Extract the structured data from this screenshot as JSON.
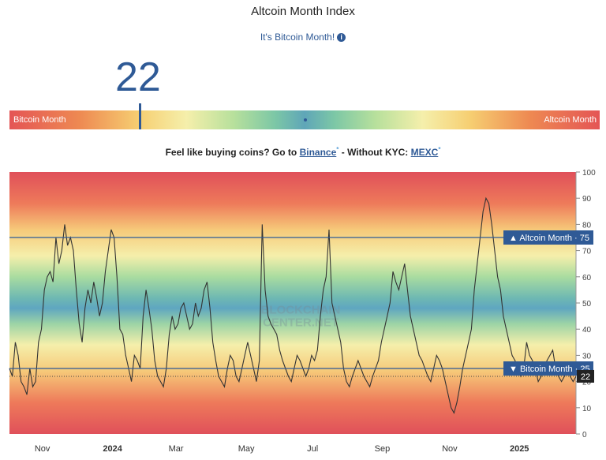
{
  "page": {
    "title": "Altcoin Month Index",
    "subtitle": "It's Bitcoin Month!",
    "index_value": "22",
    "scale_left_label": "Bitcoin Month",
    "scale_right_label": "Altcoin Month",
    "promo": {
      "prefix": "Feel like buying coins? Go to",
      "link1": "Binance",
      "sup": "*",
      "middle": "- Without KYC:",
      "link2": "MEXC"
    }
  },
  "colors": {
    "accent": "#2f5a96",
    "red": "#e45555",
    "yellow": "#f5efab",
    "blue": "#5fa6b8"
  },
  "chart_data": {
    "type": "line",
    "watermark": "BLOCKCHAIN CENTER.NET",
    "ylim": [
      0,
      100
    ],
    "yticks": [
      0,
      10,
      20,
      30,
      40,
      50,
      60,
      70,
      80,
      90,
      100
    ],
    "xticks": [
      {
        "label": "Nov",
        "pos": 0.058,
        "bold": false
      },
      {
        "label": "2024",
        "pos": 0.182,
        "bold": true
      },
      {
        "label": "Mar",
        "pos": 0.294,
        "bold": false
      },
      {
        "label": "May",
        "pos": 0.418,
        "bold": false
      },
      {
        "label": "Jul",
        "pos": 0.535,
        "bold": false
      },
      {
        "label": "Sep",
        "pos": 0.658,
        "bold": false
      },
      {
        "label": "Nov",
        "pos": 0.777,
        "bold": false
      },
      {
        "label": "2025",
        "pos": 0.9,
        "bold": true
      }
    ],
    "thresholds": [
      {
        "name": "Altcoin Month",
        "value": 75,
        "symbol": "▲"
      },
      {
        "name": "Bitcoin Month",
        "value": 25,
        "symbol": "▼"
      }
    ],
    "current_value": 22,
    "series": [
      {
        "values": [
          25,
          22,
          35,
          30,
          20,
          18,
          15,
          25,
          18,
          20,
          35,
          40,
          55,
          60,
          62,
          58,
          75,
          65,
          70,
          80,
          72,
          75,
          70,
          55,
          42,
          35,
          48,
          55,
          50,
          58,
          52,
          45,
          50,
          62,
          70,
          78,
          75,
          60,
          40,
          38,
          30,
          25,
          20,
          30,
          28,
          25,
          45,
          55,
          48,
          40,
          28,
          22,
          20,
          18,
          25,
          38,
          45,
          40,
          42,
          48,
          50,
          45,
          40,
          42,
          50,
          45,
          48,
          55,
          58,
          48,
          35,
          28,
          22,
          20,
          18,
          25,
          30,
          28,
          22,
          20,
          25,
          30,
          35,
          30,
          25,
          20,
          28,
          80,
          55,
          45,
          42,
          40,
          38,
          32,
          28,
          25,
          22,
          20,
          25,
          30,
          28,
          25,
          22,
          25,
          30,
          28,
          32,
          45,
          55,
          60,
          78,
          50,
          45,
          40,
          35,
          25,
          20,
          18,
          22,
          25,
          28,
          25,
          22,
          20,
          18,
          22,
          25,
          28,
          35,
          40,
          45,
          50,
          62,
          58,
          55,
          60,
          65,
          55,
          45,
          40,
          35,
          30,
          28,
          25,
          22,
          20,
          25,
          30,
          28,
          25,
          20,
          15,
          10,
          8,
          12,
          18,
          25,
          30,
          35,
          40,
          55,
          65,
          75,
          85,
          90,
          88,
          80,
          70,
          60,
          55,
          45,
          40,
          35,
          30,
          28,
          25,
          22,
          25,
          35,
          30,
          28,
          25,
          20,
          22,
          25,
          28,
          30,
          32,
          25,
          22,
          20,
          22,
          25,
          22,
          20,
          22
        ]
      }
    ]
  }
}
